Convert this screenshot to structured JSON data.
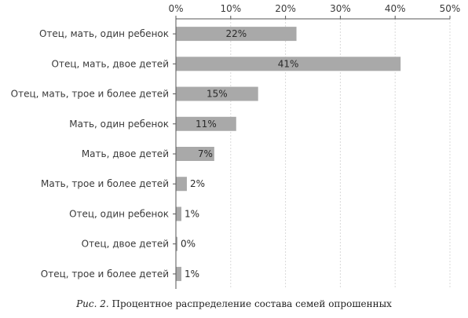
{
  "chart_data": {
    "type": "bar",
    "orientation": "horizontal",
    "categories": [
      "Отец, мать, один ребенок",
      "Отец, мать, двое детей",
      "Отец, мать, трое и более детей",
      "Мать, один ребенок",
      "Мать, двое детей",
      "Мать, трое и более детей",
      "Отец, один ребенок",
      "Отец, двое детей",
      "Отец, трое и более детей"
    ],
    "values": [
      22,
      41,
      15,
      11,
      7,
      2,
      1,
      0,
      1
    ],
    "data_labels": [
      "22%",
      "41%",
      "15%",
      "11%",
      "7%",
      "2%",
      "1%",
      "0%",
      "1%"
    ],
    "xlim": [
      0,
      50
    ],
    "x_ticks": [
      "0%",
      "10%",
      "20%",
      "30%",
      "40%",
      "50%"
    ],
    "x_axis_position": "top",
    "grid": true,
    "bar_color": "#a9a9a9",
    "grid_color": "#d9d9d9"
  },
  "caption": {
    "figure_number": "Рис. 2.",
    "text": " Процентное распределение состава семей опрошенных"
  }
}
